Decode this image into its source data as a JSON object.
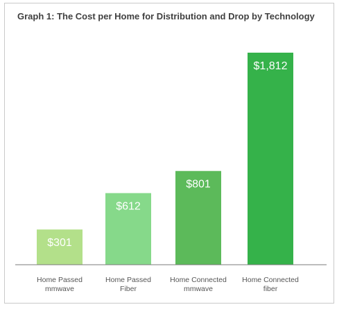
{
  "chart_data": {
    "type": "bar",
    "title": "Graph 1: The Cost per Home for Distribution and Drop by Technology",
    "categories": [
      [
        "Home Passed",
        "mmwave"
      ],
      [
        "Home Passed",
        "Fiber"
      ],
      [
        "Home Connected",
        "mmwave"
      ],
      [
        "Home Connected",
        "fiber"
      ]
    ],
    "values": [
      301,
      612,
      801,
      1812
    ],
    "data_labels": [
      "$301",
      "$612",
      "$801",
      "$1,812"
    ],
    "bar_colors": [
      "#b3e08a",
      "#86d98a",
      "#5cba5a",
      "#35b24a"
    ],
    "ylim": [
      0,
      1812
    ],
    "grid": false,
    "legend": "none"
  }
}
